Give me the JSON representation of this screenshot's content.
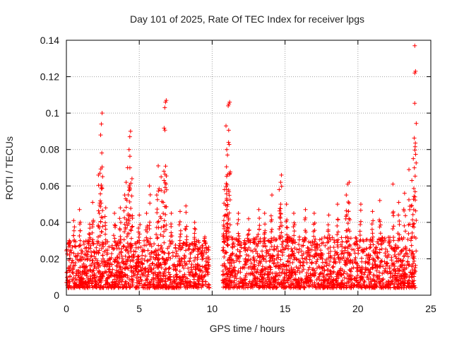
{
  "chart_data": {
    "type": "scatter",
    "title": "Day 101 of 2025, Rate Of TEC Index for receiver lpgs",
    "xlabel": "GPS time / hours",
    "ylabel": "ROTI / TECUs",
    "xlim": [
      0,
      25
    ],
    "ylim": [
      0,
      0.14
    ],
    "x_ticks": [
      0,
      5,
      10,
      15,
      20,
      25
    ],
    "x_tick_labels": [
      "0",
      "5",
      "10",
      "15",
      "20",
      "25"
    ],
    "y_ticks": [
      0,
      0.02,
      0.04,
      0.06,
      0.08,
      0.1,
      0.12,
      0.14
    ],
    "y_tick_labels": [
      "0",
      "0.02",
      "0.04",
      "0.06",
      "0.08",
      "0.1",
      "0.12",
      "0.14"
    ],
    "grid": true,
    "marker": "plus",
    "series_color": "#ff0000",
    "data_gap_hours": [
      9.8,
      10.7
    ],
    "series": [
      {
        "name": "ROTI",
        "baseline_segments": [
          {
            "x_start": 0.0,
            "x_end": 9.8,
            "typical_min": 0.004,
            "typical_max": 0.03
          },
          {
            "x_start": 10.7,
            "x_end": 24.0,
            "typical_min": 0.004,
            "typical_max": 0.032
          }
        ],
        "peaks": [
          {
            "x": 0.2,
            "y": 0.03
          },
          {
            "x": 0.5,
            "y": 0.041
          },
          {
            "x": 0.9,
            "y": 0.047
          },
          {
            "x": 1.6,
            "y": 0.039
          },
          {
            "x": 1.8,
            "y": 0.051
          },
          {
            "x": 2.2,
            "y": 0.066
          },
          {
            "x": 2.3,
            "y": 0.067
          },
          {
            "x": 2.35,
            "y": 0.088
          },
          {
            "x": 2.4,
            "y": 0.094
          },
          {
            "x": 2.45,
            "y": 0.1
          },
          {
            "x": 2.7,
            "y": 0.048
          },
          {
            "x": 3.3,
            "y": 0.045
          },
          {
            "x": 3.7,
            "y": 0.048
          },
          {
            "x": 4.0,
            "y": 0.055
          },
          {
            "x": 4.1,
            "y": 0.062
          },
          {
            "x": 4.2,
            "y": 0.07
          },
          {
            "x": 4.3,
            "y": 0.08
          },
          {
            "x": 4.35,
            "y": 0.087
          },
          {
            "x": 4.4,
            "y": 0.09
          },
          {
            "x": 4.5,
            "y": 0.064
          },
          {
            "x": 5.0,
            "y": 0.044
          },
          {
            "x": 5.5,
            "y": 0.045
          },
          {
            "x": 5.7,
            "y": 0.06
          },
          {
            "x": 6.2,
            "y": 0.055
          },
          {
            "x": 6.3,
            "y": 0.071
          },
          {
            "x": 6.5,
            "y": 0.065
          },
          {
            "x": 6.7,
            "y": 0.063
          },
          {
            "x": 6.75,
            "y": 0.103
          },
          {
            "x": 6.8,
            "y": 0.106
          },
          {
            "x": 6.85,
            "y": 0.107
          },
          {
            "x": 7.2,
            "y": 0.045
          },
          {
            "x": 7.8,
            "y": 0.046
          },
          {
            "x": 8.2,
            "y": 0.049
          },
          {
            "x": 8.8,
            "y": 0.04
          },
          {
            "x": 9.5,
            "y": 0.032
          },
          {
            "x": 10.8,
            "y": 0.041
          },
          {
            "x": 10.85,
            "y": 0.058
          },
          {
            "x": 11.0,
            "y": 0.058
          },
          {
            "x": 11.05,
            "y": 0.077
          },
          {
            "x": 11.0,
            "y": 0.08
          },
          {
            "x": 10.95,
            "y": 0.093
          },
          {
            "x": 11.1,
            "y": 0.104
          },
          {
            "x": 11.15,
            "y": 0.105
          },
          {
            "x": 11.2,
            "y": 0.106
          },
          {
            "x": 11.8,
            "y": 0.045
          },
          {
            "x": 12.5,
            "y": 0.042
          },
          {
            "x": 13.2,
            "y": 0.047
          },
          {
            "x": 13.6,
            "y": 0.045
          },
          {
            "x": 14.1,
            "y": 0.055
          },
          {
            "x": 14.6,
            "y": 0.058
          },
          {
            "x": 14.7,
            "y": 0.062
          },
          {
            "x": 14.75,
            "y": 0.066
          },
          {
            "x": 15.1,
            "y": 0.05
          },
          {
            "x": 15.6,
            "y": 0.045
          },
          {
            "x": 16.4,
            "y": 0.047
          },
          {
            "x": 17.0,
            "y": 0.045
          },
          {
            "x": 18.0,
            "y": 0.044
          },
          {
            "x": 18.6,
            "y": 0.05
          },
          {
            "x": 19.2,
            "y": 0.055
          },
          {
            "x": 19.3,
            "y": 0.061
          },
          {
            "x": 19.4,
            "y": 0.062
          },
          {
            "x": 20.2,
            "y": 0.05
          },
          {
            "x": 21.0,
            "y": 0.046
          },
          {
            "x": 21.5,
            "y": 0.052
          },
          {
            "x": 22.4,
            "y": 0.061
          },
          {
            "x": 22.8,
            "y": 0.051
          },
          {
            "x": 23.2,
            "y": 0.056
          },
          {
            "x": 23.5,
            "y": 0.069
          },
          {
            "x": 23.7,
            "y": 0.063
          },
          {
            "x": 23.8,
            "y": 0.075
          },
          {
            "x": 23.9,
            "y": 0.122
          },
          {
            "x": 23.95,
            "y": 0.123
          },
          {
            "x": 23.9,
            "y": 0.137
          }
        ]
      }
    ]
  }
}
